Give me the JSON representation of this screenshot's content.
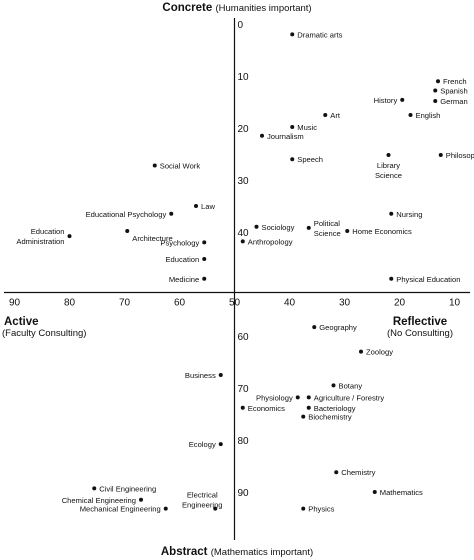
{
  "chart_data": {
    "type": "scatter",
    "x_axis": {
      "range": [
        90,
        10
      ],
      "reversed": true,
      "ticks": [
        90,
        80,
        70,
        60,
        50,
        40,
        30,
        20,
        10
      ],
      "left_label": "Active",
      "left_sublabel": "(Faculty Consulting)",
      "right_label": "Reflective",
      "right_sublabel": "(No Consulting)"
    },
    "y_axis": {
      "range": [
        0,
        95
      ],
      "inverted": true,
      "ticks": [
        0,
        10,
        20,
        30,
        40,
        60,
        70,
        80,
        90
      ],
      "top_label": "Concrete",
      "top_sublabel": "(Humanities important)",
      "bottom_label": "Abstract",
      "bottom_sublabel": "(Mathematics important)"
    },
    "grid": false,
    "points": [
      {
        "label": "Dramatic arts",
        "x": 39.5,
        "y": 2
      },
      {
        "label": "French",
        "x": 13,
        "y": 11
      },
      {
        "label": "Spanish",
        "x": 13.5,
        "y": 12.8
      },
      {
        "label": "German",
        "x": 13.5,
        "y": 14.8
      },
      {
        "label": "History",
        "x": 19.5,
        "y": 14.6
      },
      {
        "label": "Art",
        "x": 33.5,
        "y": 17.5
      },
      {
        "label": "English",
        "x": 18,
        "y": 17.5
      },
      {
        "label": "Music",
        "x": 39.5,
        "y": 19.8
      },
      {
        "label": "Journalism",
        "x": 45,
        "y": 21.5
      },
      {
        "label": "Philosophy",
        "x": 12.5,
        "y": 25.2
      },
      {
        "label": "Library Science",
        "x": 22,
        "y": 25.2
      },
      {
        "label": "Speech",
        "x": 39.5,
        "y": 26
      },
      {
        "label": "Social Work",
        "x": 64.5,
        "y": 27.2
      },
      {
        "label": "Law",
        "x": 57,
        "y": 35
      },
      {
        "label": "Educational Psychology",
        "x": 61.5,
        "y": 36.5
      },
      {
        "label": "Nursing",
        "x": 21.5,
        "y": 36.5
      },
      {
        "label": "Sociology",
        "x": 46,
        "y": 39
      },
      {
        "label": "Political Science",
        "x": 36.5,
        "y": 39.2
      },
      {
        "label": "Home Economics",
        "x": 29.5,
        "y": 39.8
      },
      {
        "label": "Architecture",
        "x": 69.5,
        "y": 39.8
      },
      {
        "label": "Education Administration",
        "x": 80,
        "y": 40.8
      },
      {
        "label": "Psychology",
        "x": 55.5,
        "y": 42
      },
      {
        "label": "Anthropology",
        "x": 48.5,
        "y": 41.8
      },
      {
        "label": "Education",
        "x": 55.5,
        "y": 45.2
      },
      {
        "label": "Medicine",
        "x": 55.5,
        "y": 49
      },
      {
        "label": "Physical Education",
        "x": 21.5,
        "y": 49
      },
      {
        "label": "Geography",
        "x": 35.5,
        "y": 58.3
      },
      {
        "label": "Zoology",
        "x": 27,
        "y": 63
      },
      {
        "label": "Business",
        "x": 52.5,
        "y": 67.5
      },
      {
        "label": "Botany",
        "x": 32,
        "y": 69.5
      },
      {
        "label": "Physiology",
        "x": 38.5,
        "y": 71.8
      },
      {
        "label": "Agriculture / Forestry",
        "x": 36.5,
        "y": 71.8
      },
      {
        "label": "Economics",
        "x": 48.5,
        "y": 73.8
      },
      {
        "label": "Bacteriology",
        "x": 36.5,
        "y": 73.8
      },
      {
        "label": "Biochemistry",
        "x": 37.5,
        "y": 75.5
      },
      {
        "label": "Ecology",
        "x": 52.5,
        "y": 80.8
      },
      {
        "label": "Chemistry",
        "x": 31.5,
        "y": 86.2
      },
      {
        "label": "Civil Engineering",
        "x": 75.5,
        "y": 89.3
      },
      {
        "label": "Mathematics",
        "x": 24.5,
        "y": 90
      },
      {
        "label": "Chemical Engineering",
        "x": 67,
        "y": 91.5
      },
      {
        "label": "Electrical Engineering",
        "x": 53.5,
        "y": 93.2
      },
      {
        "label": "Mechanical Engineering",
        "x": 62.5,
        "y": 93.2
      },
      {
        "label": "Physics",
        "x": 37.5,
        "y": 93.2
      }
    ]
  }
}
